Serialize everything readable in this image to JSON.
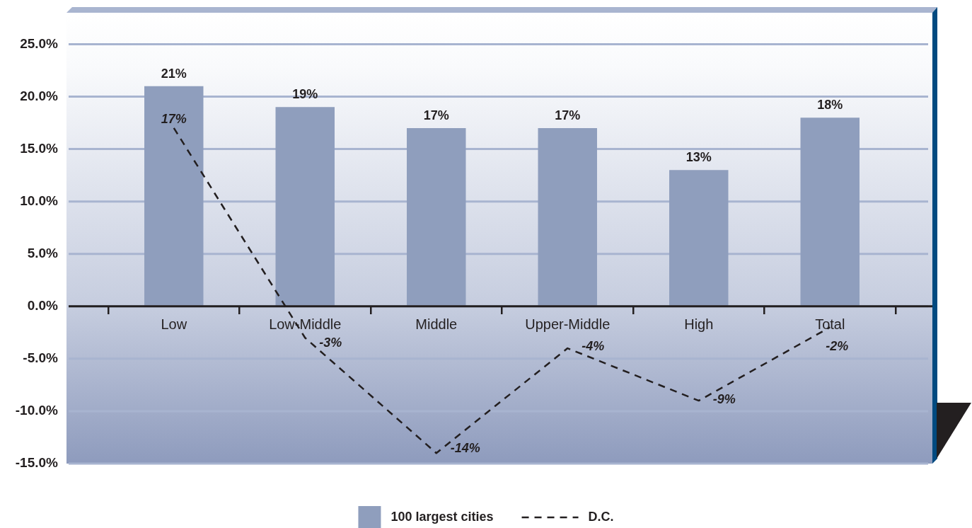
{
  "chart_data": {
    "type": "bar",
    "categories": [
      "Low",
      "Low-Middle",
      "Middle",
      "Upper-Middle",
      "High",
      "Total"
    ],
    "series": [
      {
        "name": "100 largest cities",
        "color": "#8f9ebd",
        "values": [
          21,
          19,
          17,
          17,
          13,
          18
        ],
        "value_labels": [
          "21%",
          "19%",
          "17%",
          "17%",
          "13%",
          "18%"
        ]
      },
      {
        "name": "D.C.",
        "type": "line",
        "color": "#231f20",
        "line_style": "dashed",
        "marker": "none",
        "values": [
          17,
          -3,
          -14,
          -4,
          -9,
          -2
        ],
        "value_labels": [
          "17%",
          "-3%",
          "-14%",
          "-4%",
          "-9%",
          "-2%"
        ]
      }
    ],
    "ylim": [
      -15,
      28
    ],
    "yticks": [
      {
        "value": -15,
        "label": "-15.0%"
      },
      {
        "value": -10,
        "label": "-10.0%"
      },
      {
        "value": -5,
        "label": "-5.0%"
      },
      {
        "value": 0,
        "label": "0.0%"
      },
      {
        "value": 5,
        "label": "5.0%"
      },
      {
        "value": 10,
        "label": "10.0%"
      },
      {
        "value": 15,
        "label": "15.0%"
      },
      {
        "value": 20,
        "label": "20.0%"
      },
      {
        "value": 25,
        "label": "25.0%"
      }
    ],
    "grid": "y",
    "legend": "bottom"
  }
}
